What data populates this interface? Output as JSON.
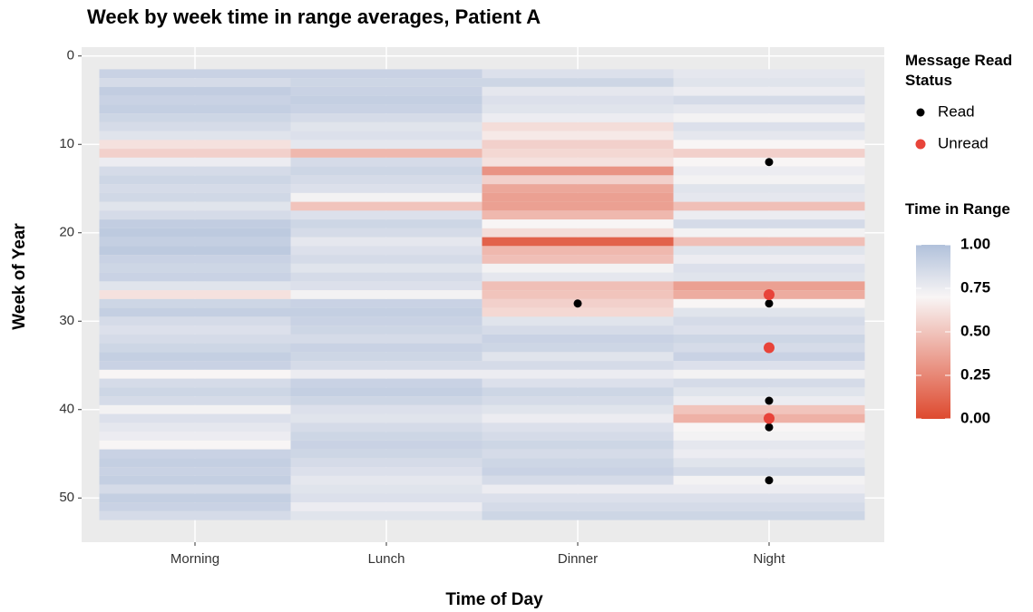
{
  "chart_data": {
    "type": "heatmap",
    "title": "Week by week time in range averages, Patient A",
    "x_label": "Time of Day",
    "y_label": "Week of Year",
    "categories": [
      "Morning",
      "Lunch",
      "Dinner",
      "Night"
    ],
    "weeks": [
      2,
      3,
      4,
      5,
      6,
      7,
      8,
      9,
      10,
      11,
      12,
      13,
      14,
      15,
      16,
      17,
      18,
      19,
      20,
      21,
      22,
      23,
      24,
      25,
      26,
      27,
      28,
      29,
      30,
      31,
      32,
      33,
      34,
      35,
      36,
      37,
      38,
      39,
      40,
      41,
      42,
      43,
      44,
      45,
      46,
      47,
      48,
      49,
      50,
      51,
      52
    ],
    "values": [
      [
        0.9,
        0.85,
        0.93,
        0.9,
        0.92,
        0.88,
        0.85,
        0.8,
        0.62,
        0.55,
        0.75,
        0.85,
        0.88,
        0.85,
        0.87,
        0.8,
        0.85,
        0.93,
        0.95,
        0.92,
        0.95,
        0.9,
        0.88,
        0.9,
        0.8,
        0.62,
        0.88,
        0.92,
        0.85,
        0.82,
        0.85,
        0.88,
        0.92,
        0.9,
        0.7,
        0.85,
        0.88,
        0.85,
        0.72,
        0.82,
        0.78,
        0.75,
        0.7,
        0.9,
        0.92,
        0.9,
        0.92,
        0.85,
        0.92,
        0.9,
        0.85
      ],
      [
        0.9,
        0.88,
        0.9,
        0.92,
        0.9,
        0.85,
        0.8,
        0.82,
        0.78,
        0.45,
        0.85,
        0.88,
        0.85,
        0.82,
        0.72,
        0.5,
        0.82,
        0.88,
        0.85,
        0.78,
        0.82,
        0.85,
        0.8,
        0.85,
        0.82,
        0.72,
        0.9,
        0.92,
        0.9,
        0.88,
        0.85,
        0.9,
        0.88,
        0.85,
        0.75,
        0.9,
        0.92,
        0.88,
        0.82,
        0.8,
        0.85,
        0.88,
        0.9,
        0.88,
        0.85,
        0.82,
        0.78,
        0.8,
        0.82,
        0.75,
        0.8
      ],
      [
        0.82,
        0.88,
        0.78,
        0.82,
        0.8,
        0.75,
        0.6,
        0.65,
        0.55,
        0.58,
        0.62,
        0.3,
        0.55,
        0.38,
        0.35,
        0.35,
        0.45,
        0.7,
        0.6,
        0.1,
        0.45,
        0.48,
        0.72,
        0.78,
        0.48,
        0.5,
        0.55,
        0.58,
        0.8,
        0.85,
        0.9,
        0.88,
        0.8,
        0.85,
        0.75,
        0.82,
        0.88,
        0.85,
        0.8,
        0.75,
        0.82,
        0.85,
        0.88,
        0.85,
        0.88,
        0.9,
        0.85,
        0.75,
        0.82,
        0.85,
        0.88
      ],
      [
        0.78,
        0.8,
        0.75,
        0.85,
        0.78,
        0.72,
        0.82,
        0.78,
        0.7,
        0.55,
        0.7,
        0.75,
        0.72,
        0.8,
        0.78,
        0.48,
        0.75,
        0.85,
        0.72,
        0.48,
        0.8,
        0.75,
        0.82,
        0.8,
        0.35,
        0.4,
        0.7,
        0.8,
        0.85,
        0.82,
        0.88,
        0.85,
        0.9,
        0.82,
        0.72,
        0.85,
        0.8,
        0.75,
        0.5,
        0.42,
        0.7,
        0.72,
        0.78,
        0.75,
        0.8,
        0.85,
        0.72,
        0.75,
        0.82,
        0.85,
        0.88
      ]
    ],
    "ylim": [
      -1,
      55
    ],
    "y_reversed": true,
    "yticks": [
      0,
      10,
      20,
      30,
      40,
      50
    ],
    "grid": true,
    "color_scale": {
      "title": "Time in Range",
      "stops": [
        {
          "value": 0,
          "color": "#de4a2f"
        },
        {
          "value": 0.7,
          "color": "#f8f5f5"
        },
        {
          "value": 1,
          "color": "#b1c1db"
        }
      ],
      "ticks": [
        {
          "value": 1,
          "label": "1.00"
        },
        {
          "value": 0.75,
          "label": "0.75"
        },
        {
          "value": 0.5,
          "label": "0.50"
        },
        {
          "value": 0.25,
          "label": "0.25"
        },
        {
          "value": 0,
          "label": "0.00"
        }
      ]
    },
    "points_title": "Message Read Status",
    "points": [
      {
        "name": "Read",
        "color": "#000000",
        "x": [
          "Night",
          "Dinner",
          "Night",
          "Night",
          "Night",
          "Night"
        ],
        "y": [
          12,
          28,
          28,
          39,
          42,
          48
        ]
      },
      {
        "name": "Unread",
        "color": "#e8443a",
        "x": [
          "Night",
          "Night",
          "Night"
        ],
        "y": [
          27,
          33,
          41
        ]
      }
    ]
  }
}
